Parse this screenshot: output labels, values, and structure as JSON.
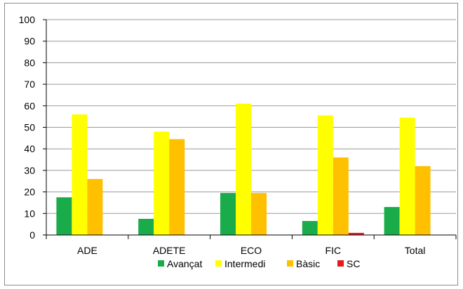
{
  "chart_data": {
    "type": "bar",
    "title": "",
    "xlabel": "",
    "ylabel": "",
    "ylim": [
      0,
      100
    ],
    "yticks": [
      0,
      10,
      20,
      30,
      40,
      50,
      60,
      70,
      80,
      90,
      100
    ],
    "grid": true,
    "legend_position": "bottom",
    "categories": [
      "ADE",
      "ADETE",
      "ECO",
      "FIC",
      "Total"
    ],
    "series": [
      {
        "name": "Avançat",
        "color": "#1aab4a",
        "values": [
          17.5,
          7.5,
          19.5,
          6.5,
          13
        ]
      },
      {
        "name": "Intermedi",
        "color": "#ffff00",
        "values": [
          56,
          48,
          61,
          55.5,
          54.5
        ]
      },
      {
        "name": "Bàsic",
        "color": "#ffc000",
        "values": [
          26,
          44.5,
          19.5,
          36,
          32
        ]
      },
      {
        "name": "SC",
        "color": "#e31b1b",
        "values": [
          0,
          0,
          0,
          1,
          0
        ]
      }
    ]
  }
}
